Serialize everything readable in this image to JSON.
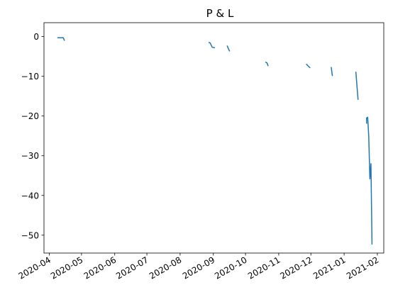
{
  "chart_data": {
    "type": "line",
    "title": "P & L",
    "xlabel": "",
    "ylabel": "",
    "grid": false,
    "legend": "none",
    "x_range": [
      "2020-03-27",
      "2021-02-07"
    ],
    "ylim": [
      -54.5,
      3.5
    ],
    "x_ticks": [
      "2020-04",
      "2020-05",
      "2020-06",
      "2020-07",
      "2020-08",
      "2020-09",
      "2020-10",
      "2020-11",
      "2020-12",
      "2021-01",
      "2021-02"
    ],
    "x_tick_dates": [
      "2020-04-01",
      "2020-05-01",
      "2020-06-01",
      "2020-07-01",
      "2020-08-01",
      "2020-09-01",
      "2020-10-01",
      "2020-11-01",
      "2020-12-01",
      "2021-01-01",
      "2021-02-01"
    ],
    "y_ticks": [
      0,
      -10,
      -20,
      -30,
      -40,
      -50
    ],
    "y_tick_labels": [
      "0",
      "−10",
      "−20",
      "−30",
      "−40",
      "−50"
    ],
    "series": [
      {
        "color": "#1f77b4",
        "segments": [
          [
            [
              "2020-04-09",
              -0.3
            ],
            [
              "2020-04-14",
              -0.3
            ],
            [
              "2020-04-15",
              -0.9
            ]
          ],
          [
            [
              "2020-08-28",
              -1.5
            ],
            [
              "2020-08-29",
              -1.6
            ],
            [
              "2020-08-31",
              -2.7
            ],
            [
              "2020-09-02",
              -2.8
            ]
          ],
          [
            [
              "2020-09-14",
              -2.4
            ],
            [
              "2020-09-15",
              -3.0
            ],
            [
              "2020-09-16",
              -3.6
            ]
          ],
          [
            [
              "2020-10-20",
              -6.5
            ],
            [
              "2020-10-21",
              -6.6
            ],
            [
              "2020-10-22",
              -7.3
            ]
          ],
          [
            [
              "2020-11-27",
              -7.0
            ],
            [
              "2020-11-28",
              -7.3
            ],
            [
              "2020-11-30",
              -7.8
            ]
          ],
          [
            [
              "2020-12-20",
              -7.8
            ],
            [
              "2020-12-21",
              -9.8
            ]
          ],
          [
            [
              "2021-01-12",
              -9.0
            ],
            [
              "2021-01-14",
              -15.8
            ]
          ],
          [
            [
              "2021-01-22",
              -21.8
            ],
            [
              "2021-01-22",
              -20.5
            ],
            [
              "2021-01-23",
              -20.3
            ],
            [
              "2021-01-24",
              -25.0
            ],
            [
              "2021-01-25",
              -35.8
            ],
            [
              "2021-01-26",
              -32.0
            ],
            [
              "2021-01-27",
              -52.2
            ]
          ]
        ]
      }
    ]
  }
}
